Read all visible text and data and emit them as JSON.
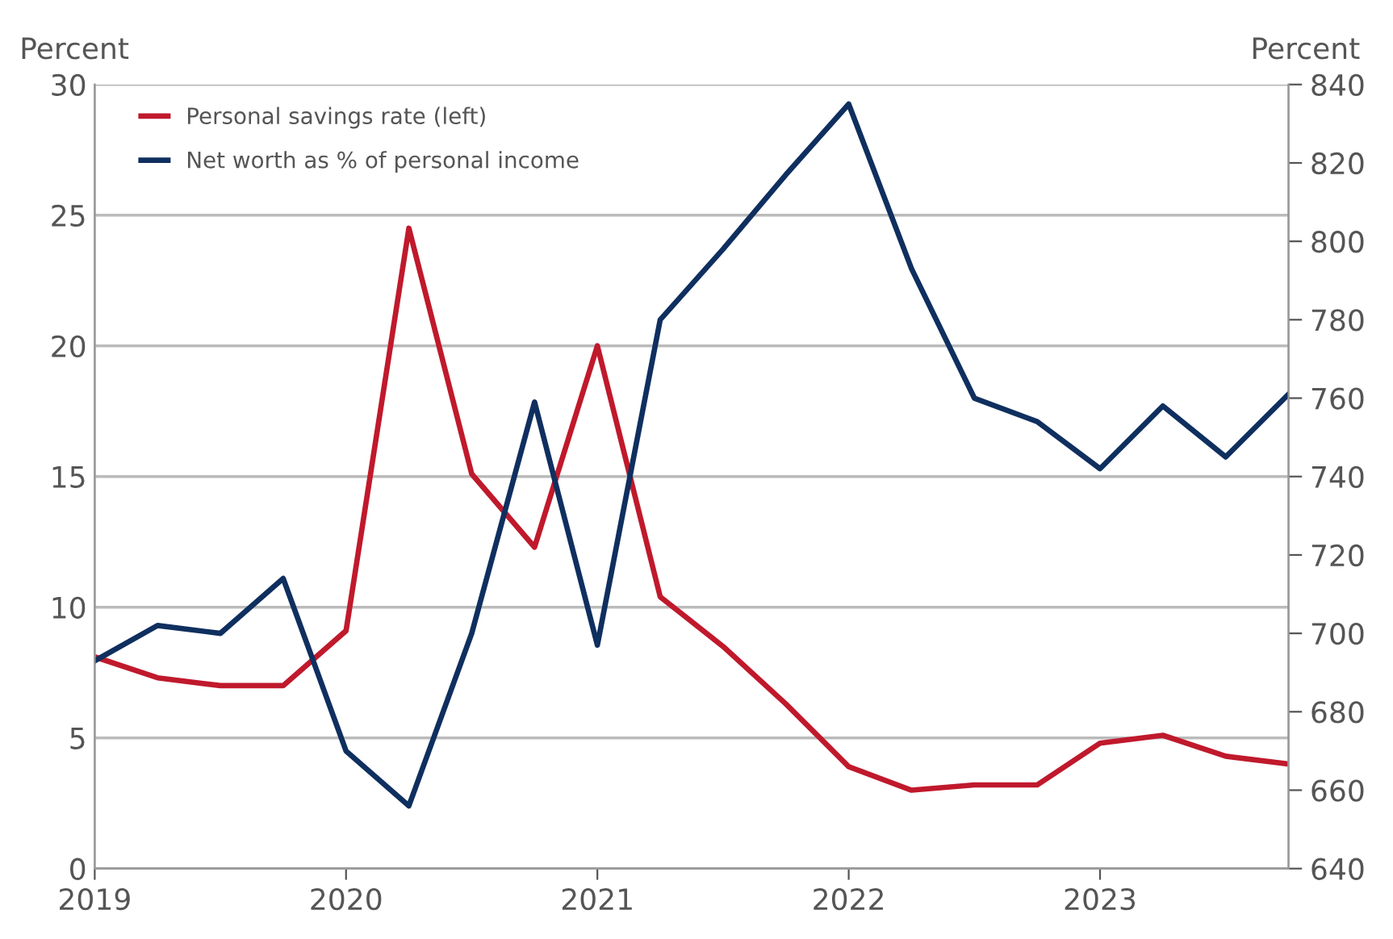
{
  "chart_data": {
    "type": "line",
    "ylabel": "Percent",
    "y2label": "Percent",
    "x": [
      2019,
      2019.25,
      2019.5,
      2019.75,
      2020,
      2020.25,
      2020.5,
      2020.75,
      2021,
      2021.25,
      2021.5,
      2021.75,
      2022,
      2022.25,
      2022.5,
      2022.75,
      2023,
      2023.25,
      2023.5,
      2023.75
    ],
    "series": [
      {
        "name": "Personal savings rate (left)",
        "color": "#c0192c",
        "values": [
          8.1,
          7.3,
          7.0,
          7.0,
          9.1,
          24.5,
          15.1,
          12.3,
          20.0,
          10.4,
          8.5,
          6.3,
          3.9,
          3.0,
          3.2,
          3.2,
          4.8,
          5.1,
          4.3,
          4.0
        ]
      },
      {
        "name": "Net worth as % of personal income",
        "color": "#0f2f5f",
        "axis": "y2",
        "values": [
          693,
          702,
          700,
          714,
          670,
          656,
          700,
          759,
          697,
          780,
          798,
          817,
          835,
          793,
          760,
          754,
          742,
          758,
          745,
          761
        ]
      }
    ],
    "xlim": [
      2019,
      2023.75
    ],
    "xticks": [
      2019,
      2020,
      2021,
      2022,
      2023
    ],
    "ylim": [
      0,
      30
    ],
    "yticks": [
      0,
      5,
      10,
      15,
      20,
      25,
      30
    ],
    "y2lim": [
      640,
      840
    ],
    "y2ticks": [
      640,
      660,
      680,
      700,
      720,
      740,
      760,
      780,
      800,
      820,
      840
    ],
    "grid": "y",
    "legend": "top left",
    "line_style": "solid",
    "marker": "none"
  }
}
